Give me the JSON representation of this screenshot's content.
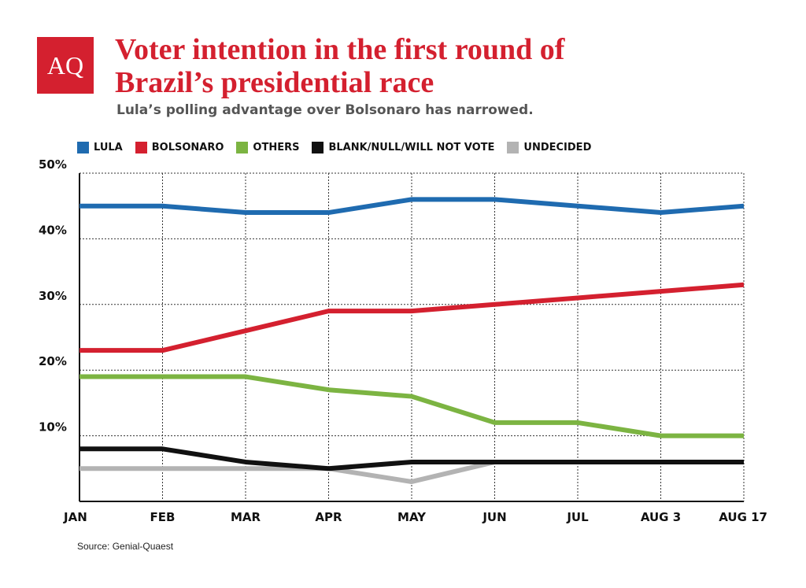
{
  "logo": {
    "text": "AQ",
    "color": "#d4202f"
  },
  "chart_data": {
    "type": "line",
    "title": "Voter intention in the first round of Brazil’s presidential race",
    "subtitle": "Lula’s polling advantage over Bolsonaro has narrowed.",
    "categories": [
      "JAN",
      "FEB",
      "MAR",
      "APR",
      "MAY",
      "JUN",
      "JUL",
      "AUG 3",
      "AUG 17"
    ],
    "ylim": [
      0,
      50
    ],
    "y_ticks": [
      10,
      20,
      30,
      40,
      50
    ],
    "y_tick_labels": [
      "10%",
      "20%",
      "30%",
      "40%",
      "50%"
    ],
    "grid": true,
    "legend_position": "top",
    "series": [
      {
        "name": "LULA",
        "color": "#1f6bb0",
        "values": [
          45,
          45,
          44,
          44,
          46,
          46,
          45,
          44,
          45
        ]
      },
      {
        "name": "BOLSONARO",
        "color": "#d4202f",
        "values": [
          23,
          23,
          26,
          29,
          29,
          30,
          31,
          32,
          33
        ]
      },
      {
        "name": "OTHERS",
        "color": "#7cb442",
        "values": [
          19,
          19,
          19,
          17,
          16,
          12,
          12,
          10,
          10
        ]
      },
      {
        "name": "BLANK/NULL/WILL NOT VOTE",
        "color": "#111111",
        "values": [
          8,
          8,
          6,
          5,
          6,
          6,
          6,
          6,
          6
        ]
      },
      {
        "name": "UNDECIDED",
        "color": "#b3b3b3",
        "values": [
          5,
          5,
          5,
          5,
          3,
          6,
          6,
          6,
          6
        ]
      }
    ],
    "source": "Source: Genial-Quaest"
  }
}
